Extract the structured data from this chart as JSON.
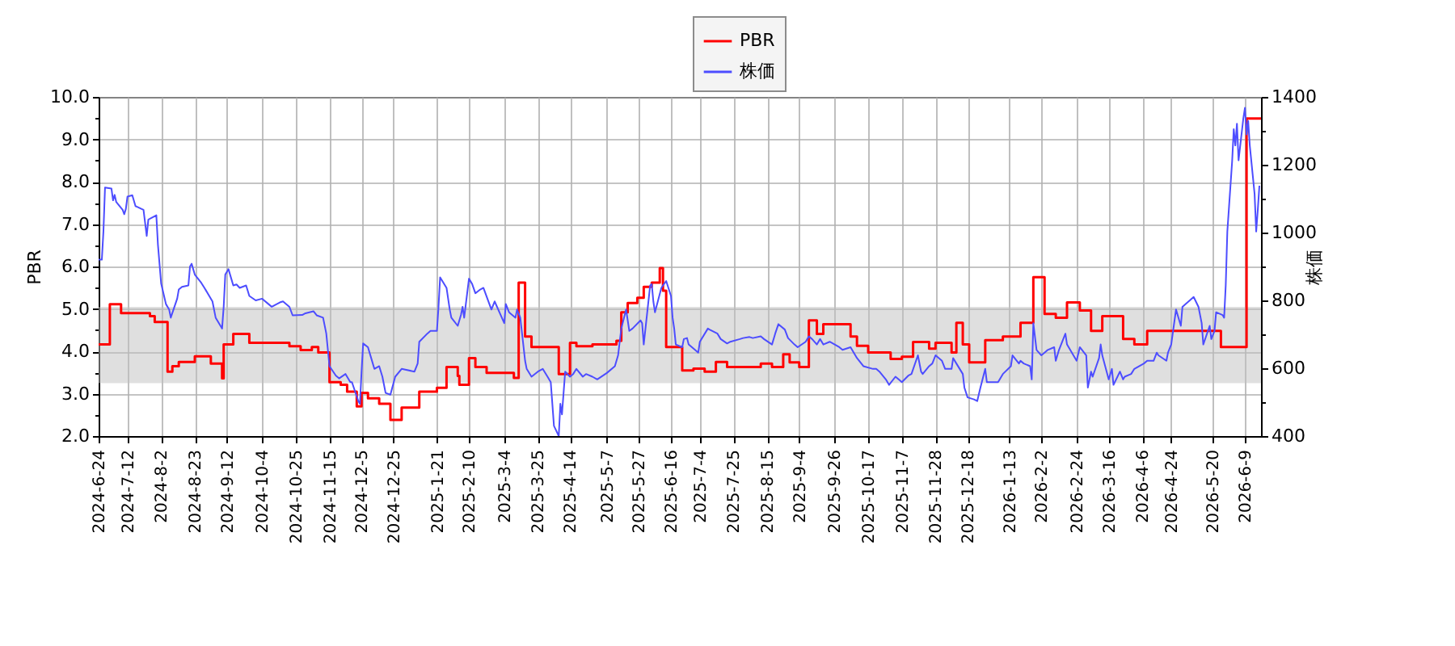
{
  "chart_data": {
    "type": "line",
    "ylabel": "PBR",
    "y2label": "株価",
    "xlim": [
      "2024-06-24",
      "2026-06-19"
    ],
    "xticks": [
      {
        "value": "2024-06-24",
        "label": "2024-6-24"
      },
      {
        "value": "2024-07-12",
        "label": "2024-7-12"
      },
      {
        "value": "2024-08-02",
        "label": "2024-8-2"
      },
      {
        "value": "2024-08-23",
        "label": "2024-8-23"
      },
      {
        "value": "2024-09-12",
        "label": "2024-9-12"
      },
      {
        "value": "2024-10-04",
        "label": "2024-10-4"
      },
      {
        "value": "2024-10-25",
        "label": "2024-10-25"
      },
      {
        "value": "2024-11-15",
        "label": "2024-11-15"
      },
      {
        "value": "2024-12-05",
        "label": "2024-12-5"
      },
      {
        "value": "2024-12-25",
        "label": "2024-12-25"
      },
      {
        "value": "2025-01-21",
        "label": "2025-1-21"
      },
      {
        "value": "2025-02-10",
        "label": "2025-2-10"
      },
      {
        "value": "2025-03-04",
        "label": "2025-3-4"
      },
      {
        "value": "2025-03-25",
        "label": "2025-3-25"
      },
      {
        "value": "2025-04-14",
        "label": "2025-4-14"
      },
      {
        "value": "2025-05-07",
        "label": "2025-5-7"
      },
      {
        "value": "2025-05-27",
        "label": "2025-5-27"
      },
      {
        "value": "2025-06-16",
        "label": "2025-6-16"
      },
      {
        "value": "2025-07-04",
        "label": "2025-7-4"
      },
      {
        "value": "2025-07-25",
        "label": "2025-7-25"
      },
      {
        "value": "2025-08-15",
        "label": "2025-8-15"
      },
      {
        "value": "2025-09-04",
        "label": "2025-9-4"
      },
      {
        "value": "2025-09-26",
        "label": "2025-9-26"
      },
      {
        "value": "2025-10-17",
        "label": "2025-10-17"
      },
      {
        "value": "2025-11-07",
        "label": "2025-11-7"
      },
      {
        "value": "2025-11-28",
        "label": "2025-11-28"
      },
      {
        "value": "2025-12-18",
        "label": "2025-12-18"
      },
      {
        "value": "2026-01-13",
        "label": "2026-1-13"
      },
      {
        "value": "2026-02-02",
        "label": "2026-2-2"
      },
      {
        "value": "2026-02-24",
        "label": "2026-2-24"
      },
      {
        "value": "2026-03-16",
        "label": "2026-3-16"
      },
      {
        "value": "2026-04-06",
        "label": "2026-4-6"
      },
      {
        "value": "2026-04-24",
        "label": "2026-4-24"
      },
      {
        "value": "2026-05-20",
        "label": "2026-5-20"
      },
      {
        "value": "2026-06-09",
        "label": "2026-6-9"
      }
    ],
    "ylim": [
      2,
      10
    ],
    "yticks": [
      {
        "value": 2,
        "label": "2.0"
      },
      {
        "value": 2.5,
        "label": null
      },
      {
        "value": 3,
        "label": "3.0"
      },
      {
        "value": 3.5,
        "label": null
      },
      {
        "value": 4,
        "label": "4.0"
      },
      {
        "value": 4.5,
        "label": null
      },
      {
        "value": 5,
        "label": "5.0"
      },
      {
        "value": 5.5,
        "label": null
      },
      {
        "value": 6,
        "label": "6.0"
      },
      {
        "value": 6.5,
        "label": null
      },
      {
        "value": 7,
        "label": "7.0"
      },
      {
        "value": 7.5,
        "label": null
      },
      {
        "value": 8,
        "label": "8.0"
      },
      {
        "value": 8.5,
        "label": null
      },
      {
        "value": 9,
        "label": "9.0"
      },
      {
        "value": 9.5,
        "label": null
      },
      {
        "value": 10,
        "label": "10.0"
      }
    ],
    "y2lim": [
      400,
      1400
    ],
    "y2ticks": [
      400,
      {
        "value": 500,
        "label": null
      },
      600,
      {
        "value": 700,
        "label": null
      },
      800,
      {
        "value": 900,
        "label": null
      },
      1000,
      {
        "value": 1100,
        "label": null
      },
      1200,
      {
        "value": 1300,
        "label": null
      },
      1400
    ],
    "grid": true,
    "legend": "top",
    "bands": [
      {
        "axis": "y",
        "from": 3.25,
        "to": 5.05,
        "color": "#c0c0c0"
      }
    ],
    "series": [
      {
        "name": "PBR",
        "color": "#ff0000",
        "type": "step",
        "x": [
          "2024-06-24",
          "2024-07-01",
          "2024-07-08",
          "2024-07-26",
          "2024-07-29",
          "2024-08-06",
          "2024-08-09",
          "2024-08-13",
          "2024-08-23",
          "2024-09-02",
          "2024-09-09",
          "2024-09-10",
          "2024-09-16",
          "2024-09-26",
          "2024-10-21",
          "2024-10-28",
          "2024-11-04",
          "2024-11-08",
          "2024-11-15",
          "2024-11-22",
          "2024-11-26",
          "2024-12-02",
          "2024-12-05",
          "2024-12-09",
          "2024-12-16",
          "2024-12-23",
          "2024-12-30",
          "2025-01-10",
          "2025-01-21",
          "2025-01-27",
          "2025-02-03",
          "2025-02-04",
          "2025-02-10",
          "2025-02-14",
          "2025-02-21",
          "2025-03-10",
          "2025-03-13",
          "2025-03-17",
          "2025-03-21",
          "2025-04-07",
          "2025-04-14",
          "2025-04-18",
          "2025-04-28",
          "2025-05-13",
          "2025-05-16",
          "2025-05-20",
          "2025-05-26",
          "2025-05-30",
          "2025-06-04",
          "2025-06-09",
          "2025-06-11",
          "2025-06-13",
          "2025-06-23",
          "2025-06-30",
          "2025-07-07",
          "2025-07-14",
          "2025-07-21",
          "2025-08-11",
          "2025-08-18",
          "2025-08-25",
          "2025-08-29",
          "2025-09-04",
          "2025-09-10",
          "2025-09-15",
          "2025-09-19",
          "2025-10-06",
          "2025-10-10",
          "2025-10-17",
          "2025-10-31",
          "2025-11-07",
          "2025-11-14",
          "2025-11-24",
          "2025-11-28",
          "2025-12-08",
          "2025-12-11",
          "2025-12-15",
          "2025-12-19",
          "2025-12-29",
          "2026-01-09",
          "2026-01-20",
          "2026-01-28",
          "2026-02-04",
          "2026-02-11",
          "2026-02-18",
          "2026-02-26",
          "2026-03-05",
          "2026-03-12",
          "2026-03-25",
          "2026-04-01",
          "2026-04-09",
          "2026-05-25",
          "2026-06-10",
          "2026-06-19"
        ],
        "values": [
          4.16,
          5.11,
          4.9,
          4.83,
          4.69,
          3.52,
          3.65,
          3.75,
          3.88,
          3.71,
          3.36,
          4.16,
          4.41,
          4.2,
          4.12,
          4.03,
          4.1,
          3.97,
          3.27,
          3.21,
          3.05,
          2.7,
          3.02,
          2.89,
          2.76,
          2.38,
          2.67,
          3.05,
          3.14,
          3.63,
          3.42,
          3.21,
          3.84,
          3.63,
          3.49,
          3.37,
          5.62,
          4.35,
          4.1,
          3.46,
          4.2,
          4.12,
          4.16,
          4.25,
          4.92,
          5.14,
          5.26,
          5.52,
          5.62,
          5.96,
          5.43,
          4.1,
          3.55,
          3.59,
          3.52,
          3.75,
          3.63,
          3.71,
          3.63,
          3.93,
          3.74,
          3.63,
          4.73,
          4.41,
          4.64,
          4.35,
          4.13,
          3.97,
          3.82,
          3.87,
          4.22,
          4.06,
          4.2,
          3.97,
          4.67,
          4.16,
          3.74,
          4.26,
          4.35,
          4.67,
          5.75,
          4.88,
          4.79,
          5.15,
          4.96,
          4.48,
          4.83,
          4.29,
          4.16,
          4.48,
          4.1,
          9.49,
          9.49
        ]
      },
      {
        "name": "株価",
        "color": "#4d4dff",
        "type": "line",
        "axis": "y2",
        "x": [
          "2024-06-24",
          "2024-06-26",
          "2024-06-27",
          "2024-06-28",
          "2024-07-02",
          "2024-07-03",
          "2024-07-04",
          "2024-07-05",
          "2024-07-09",
          "2024-07-10",
          "2024-07-11",
          "2024-07-12",
          "2024-07-15",
          "2024-07-17",
          "2024-07-18",
          "2024-07-22",
          "2024-07-24",
          "2024-07-25",
          "2024-07-26",
          "2024-07-30",
          "2024-07-31",
          "2024-08-02",
          "2024-08-05",
          "2024-08-06",
          "2024-08-07",
          "2024-08-08",
          "2024-08-12",
          "2024-08-13",
          "2024-08-15",
          "2024-08-19",
          "2024-08-20",
          "2024-08-21",
          "2024-08-23",
          "2024-08-27",
          "2024-08-29",
          "2024-09-03",
          "2024-09-05",
          "2024-09-09",
          "2024-09-10",
          "2024-09-11",
          "2024-09-13",
          "2024-09-16",
          "2024-09-18",
          "2024-09-20",
          "2024-09-24",
          "2024-09-26",
          "2024-09-30",
          "2024-10-04",
          "2024-10-08",
          "2024-10-10",
          "2024-10-15",
          "2024-10-17",
          "2024-10-21",
          "2024-10-23",
          "2024-10-29",
          "2024-10-31",
          "2024-11-05",
          "2024-11-07",
          "2024-11-11",
          "2024-11-13",
          "2024-11-15",
          "2024-11-19",
          "2024-11-21",
          "2024-11-25",
          "2024-11-28",
          "2024-11-29",
          "2024-12-03",
          "2024-12-04",
          "2024-12-05",
          "2024-12-06",
          "2024-12-09",
          "2024-12-11",
          "2024-12-13",
          "2024-12-16",
          "2024-12-18",
          "2024-12-20",
          "2024-12-23",
          "2024-12-24",
          "2024-12-26",
          "2024-12-30",
          "2025-01-07",
          "2025-01-09",
          "2025-01-10",
          "2025-01-15",
          "2025-01-17",
          "2025-01-21",
          "2025-01-22",
          "2025-01-23",
          "2025-01-27",
          "2025-01-29",
          "2025-01-30",
          "2025-02-03",
          "2025-02-05",
          "2025-02-06",
          "2025-02-07",
          "2025-02-10",
          "2025-02-12",
          "2025-02-14",
          "2025-02-17",
          "2025-02-19",
          "2025-02-24",
          "2025-02-26",
          "2025-03-04",
          "2025-03-05",
          "2025-03-07",
          "2025-03-11",
          "2025-03-12",
          "2025-03-14",
          "2025-03-17",
          "2025-03-18",
          "2025-03-21",
          "2025-03-25",
          "2025-03-28",
          "2025-03-31",
          "2025-04-02",
          "2025-04-03",
          "2025-04-04",
          "2025-04-07",
          "2025-04-08",
          "2025-04-09",
          "2025-04-11",
          "2025-04-14",
          "2025-04-16",
          "2025-04-18",
          "2025-04-22",
          "2025-04-24",
          "2025-04-28",
          "2025-05-01",
          "2025-05-07",
          "2025-05-12",
          "2025-05-14",
          "2025-05-16",
          "2025-05-19",
          "2025-05-21",
          "2025-05-23",
          "2025-05-28",
          "2025-05-29",
          "2025-05-30",
          "2025-06-03",
          "2025-06-04",
          "2025-06-05",
          "2025-06-06",
          "2025-06-10",
          "2025-06-11",
          "2025-06-13",
          "2025-06-16",
          "2025-06-17",
          "2025-06-18",
          "2025-06-19",
          "2025-06-23",
          "2025-06-24",
          "2025-06-26",
          "2025-06-27",
          "2025-07-01",
          "2025-07-03",
          "2025-07-04",
          "2025-07-09",
          "2025-07-10",
          "2025-07-15",
          "2025-07-17",
          "2025-07-21",
          "2025-07-23",
          "2025-07-29",
          "2025-07-31",
          "2025-08-04",
          "2025-08-06",
          "2025-08-11",
          "2025-08-13",
          "2025-08-18",
          "2025-08-20",
          "2025-08-22",
          "2025-08-26",
          "2025-08-28",
          "2025-09-01",
          "2025-09-03",
          "2025-09-08",
          "2025-09-10",
          "2025-09-12",
          "2025-09-15",
          "2025-09-17",
          "2025-09-19",
          "2025-09-23",
          "2025-09-29",
          "2025-10-01",
          "2025-10-06",
          "2025-10-08",
          "2025-10-10",
          "2025-10-14",
          "2025-10-20",
          "2025-10-22",
          "2025-10-24",
          "2025-10-28",
          "2025-10-30",
          "2025-11-03",
          "2025-11-05",
          "2025-11-07",
          "2025-11-11",
          "2025-11-13",
          "2025-11-17",
          "2025-11-19",
          "2025-11-20",
          "2025-11-24",
          "2025-11-26",
          "2025-11-28",
          "2025-12-02",
          "2025-12-04",
          "2025-12-08",
          "2025-12-09",
          "2025-12-11",
          "2025-12-15",
          "2025-12-16",
          "2025-12-18",
          "2025-12-22",
          "2025-12-24",
          "2025-12-26",
          "2025-12-29",
          "2025-12-30",
          "2026-01-06",
          "2026-01-09",
          "2026-01-14",
          "2026-01-15",
          "2026-01-19",
          "2026-01-20",
          "2026-01-22",
          "2026-01-26",
          "2026-01-27",
          "2026-01-28",
          "2026-01-30",
          "2026-02-02",
          "2026-02-04",
          "2026-02-06",
          "2026-02-10",
          "2026-02-11",
          "2026-02-13",
          "2026-02-17",
          "2026-02-18",
          "2026-02-24",
          "2026-02-26",
          "2026-03-02",
          "2026-03-03",
          "2026-03-05",
          "2026-03-06",
          "2026-03-10",
          "2026-03-11",
          "2026-03-12",
          "2026-03-16",
          "2026-03-18",
          "2026-03-19",
          "2026-03-23",
          "2026-03-25",
          "2026-03-26",
          "2026-03-30",
          "2026-04-01",
          "2026-04-07",
          "2026-04-09",
          "2026-04-13",
          "2026-04-15",
          "2026-04-16",
          "2026-04-21",
          "2026-04-22",
          "2026-04-24",
          "2026-04-27",
          "2026-04-30",
          "2026-05-01",
          "2026-05-08",
          "2026-05-11",
          "2026-05-13",
          "2026-05-14",
          "2026-05-18",
          "2026-05-19",
          "2026-05-21",
          "2026-05-22",
          "2026-05-26",
          "2026-05-27",
          "2026-05-28",
          "2026-05-29",
          "2026-06-01",
          "2026-06-02",
          "2026-06-03",
          "2026-06-04",
          "2026-06-05",
          "2026-06-08",
          "2026-06-09",
          "2026-06-10",
          "2026-06-11",
          "2026-06-12",
          "2026-06-15",
          "2026-06-16",
          "2026-06-17",
          "2026-06-18"
        ],
        "values": [
          920,
          920,
          1003,
          1133,
          1130,
          1095,
          1111,
          1090,
          1067,
          1054,
          1070,
          1106,
          1110,
          1078,
          1076,
          1067,
          990,
          1038,
          1041,
          1051,
          964,
          850,
          789,
          781,
          773,
          749,
          805,
          832,
          840,
          844,
          900,
          908,
          876,
          852,
          837,
          797,
          749,
          717,
          781,
          876,
          892,
          844,
          847,
          837,
          844,
          813,
          800,
          805,
          789,
          781,
          794,
          797,
          781,
          756,
          757,
          762,
          768,
          756,
          749,
          702,
          606,
          578,
          570,
          583,
          559,
          559,
          503,
          495,
          590,
          673,
          662,
          630,
          598,
          606,
          575,
          527,
          522,
          540,
          575,
          598,
          590,
          614,
          678,
          702,
          710,
          710,
          781,
          868,
          837,
          773,
          749,
          725,
          757,
          781,
          749,
          864,
          848,
          821,
          832,
          837,
          773,
          797,
          733,
          789,
          765,
          749,
          773,
          749,
          622,
          598,
          575,
          590,
          598,
          575,
          559,
          495,
          430,
          400,
          495,
          464,
          590,
          575,
          583,
          598,
          575,
          583,
          575,
          567,
          586,
          606,
          638,
          717,
          773,
          710,
          717,
          741,
          733,
          670,
          844,
          848,
          797,
          765,
          837,
          844,
          857,
          813,
          749,
          717,
          670,
          662,
          686,
          689,
          670,
          654,
          646,
          678,
          717,
          714,
          702,
          686,
          673,
          678,
          686,
          689,
          692,
          689,
          694,
          686,
          670,
          702,
          730,
          714,
          689,
          670,
          662,
          678,
          694,
          686,
          670,
          686,
          670,
          678,
          662,
          654,
          662,
          646,
          630,
          606,
          598,
          598,
          590,
          567,
          551,
          575,
          567,
          559,
          578,
          583,
          638,
          590,
          583,
          606,
          614,
          638,
          622,
          598,
          598,
          630,
          614,
          583,
          543,
          514,
          508,
          503,
          543,
          598,
          559,
          559,
          583,
          606,
          638,
          614,
          622,
          614,
          606,
          567,
          733,
          654,
          638,
          646,
          654,
          662,
          622,
          654,
          702,
          670,
          622,
          662,
          638,
          543,
          590,
          575,
          630,
          670,
          638,
          567,
          598,
          551,
          590,
          567,
          575,
          583,
          598,
          614,
          622,
          622,
          646,
          638,
          622,
          646,
          670,
          773,
          725,
          781,
          810,
          781,
          733,
          670,
          725,
          686,
          710,
          765,
          757,
          749,
          844,
          1003,
          1210,
          1305,
          1257,
          1321,
          1213,
          1337,
          1368,
          1289,
          1329,
          1257,
          1114,
          1003,
          1067,
          1138
        ]
      }
    ]
  }
}
